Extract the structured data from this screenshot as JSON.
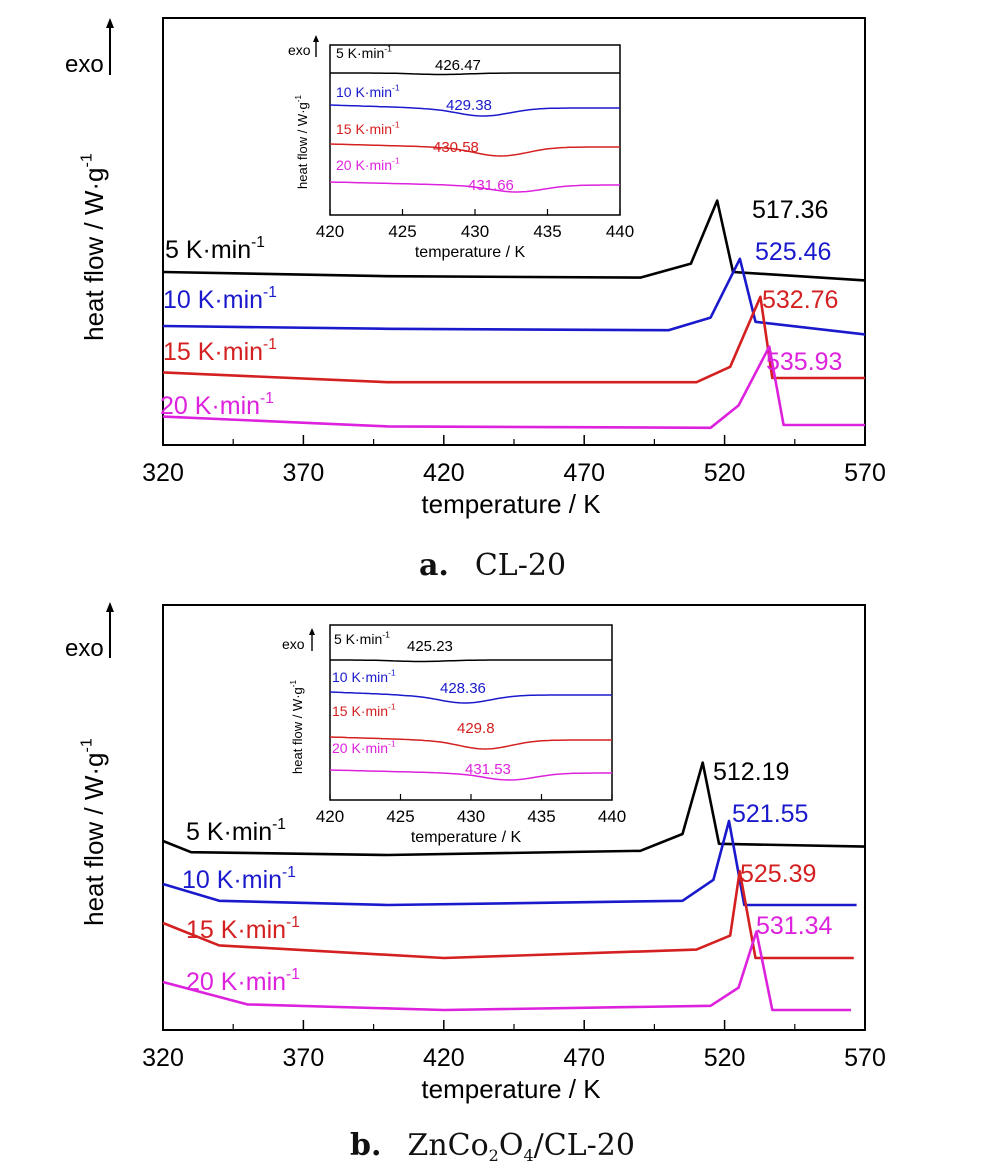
{
  "figures": [
    {
      "caption_letter": "a.",
      "caption_text": "CL-20",
      "main_peaks": [
        "517.36",
        "525.46",
        "532.76",
        "535.93"
      ],
      "inset_peaks": [
        "426.47",
        "429.38",
        "430.58",
        "431.66"
      ]
    },
    {
      "caption_letter": "b.",
      "caption_text_parts": [
        "ZnCo",
        "2",
        "O",
        "4",
        "/CL-20"
      ],
      "main_peaks": [
        "512.19",
        "521.55",
        "525.39",
        "531.34"
      ],
      "inset_peaks": [
        "425.23",
        "428.36",
        "429.8",
        "431.53"
      ]
    }
  ],
  "common": {
    "exo_label": "exo",
    "ylabel": "heat flow / W·g⁻¹",
    "xlabel": "temperature / K",
    "series_labels": [
      "5 K·min⁻¹",
      "10 K·min⁻¹",
      "15 K·min⁻¹",
      "20 K·min⁻¹"
    ],
    "series_colors": [
      "#000000",
      "#1a1acc",
      "#d42020",
      "#dd22dd"
    ]
  },
  "chart_data": [
    {
      "type": "line",
      "title": "CL-20",
      "xlabel": "temperature / K",
      "ylabel": "heat flow / W·g⁻¹",
      "xlim": [
        320,
        570
      ],
      "x_ticks": [
        320,
        370,
        420,
        470,
        520,
        570
      ],
      "legend": "none",
      "series": [
        {
          "name": "5 K·min⁻¹",
          "color": "#000000",
          "peak_T": 517.36,
          "points": [
            [
              320,
              0
            ],
            [
              400,
              -0.3
            ],
            [
              490,
              -0.4
            ],
            [
              508,
              0.6
            ],
            [
              517.36,
              5.1
            ],
            [
              523,
              0.0
            ],
            [
              570,
              -0.6
            ]
          ]
        },
        {
          "name": "10 K·min⁻¹",
          "color": "#1a1acc",
          "peak_T": 525.46,
          "points": [
            [
              320,
              0
            ],
            [
              400,
              -0.2
            ],
            [
              500,
              -0.3
            ],
            [
              515,
              0.6
            ],
            [
              525.46,
              4.8
            ],
            [
              531,
              0.3
            ],
            [
              570,
              -0.6
            ]
          ]
        },
        {
          "name": "15 K·min⁻¹",
          "color": "#d42020",
          "peak_T": 532.76,
          "points": [
            [
              320,
              0.4
            ],
            [
              400,
              -0.3
            ],
            [
              510,
              -0.3
            ],
            [
              522,
              0.8
            ],
            [
              532.76,
              5.8
            ],
            [
              537,
              0.0
            ],
            [
              570,
              0.0
            ]
          ]
        },
        {
          "name": "20 K·min⁻¹",
          "color": "#dd22dd",
          "peak_T": 535.93,
          "points": [
            [
              320,
              0.6
            ],
            [
              400,
              -0.1
            ],
            [
              515,
              -0.2
            ],
            [
              525,
              1.4
            ],
            [
              535.93,
              5.6
            ],
            [
              541,
              0.0
            ],
            [
              570,
              0.0
            ]
          ]
        }
      ],
      "inset": {
        "xlim": [
          420,
          440
        ],
        "x_ticks": [
          420,
          425,
          430,
          435,
          440
        ],
        "xlabel": "temperature / K",
        "ylabel": "heat flow / W·g⁻¹",
        "peaks": [
          426.47,
          429.38,
          430.58,
          431.66
        ]
      }
    },
    {
      "type": "line",
      "title": "ZnCo₂O₄/CL-20",
      "xlabel": "temperature / K",
      "ylabel": "heat flow / W·g⁻¹",
      "xlim": [
        320,
        570
      ],
      "x_ticks": [
        320,
        370,
        420,
        470,
        520,
        570
      ],
      "legend": "none",
      "series": [
        {
          "name": "5 K·min⁻¹",
          "color": "#000000",
          "peak_T": 512.19,
          "points": [
            [
              320,
              1.0
            ],
            [
              330,
              0.2
            ],
            [
              400,
              0.0
            ],
            [
              490,
              0.3
            ],
            [
              505,
              1.5
            ],
            [
              512.19,
              6.6
            ],
            [
              518,
              0.8
            ],
            [
              570,
              0.6
            ]
          ]
        },
        {
          "name": "10 K·min⁻¹",
          "color": "#1a1acc",
          "peak_T": 521.55,
          "points": [
            [
              320,
              1.5
            ],
            [
              340,
              0.3
            ],
            [
              400,
              0.0
            ],
            [
              505,
              0.3
            ],
            [
              516,
              1.8
            ],
            [
              521.55,
              6.0
            ],
            [
              527,
              0.0
            ],
            [
              567,
              0.0
            ]
          ]
        },
        {
          "name": "15 K·min⁻¹",
          "color": "#d42020",
          "peak_T": 525.39,
          "points": [
            [
              320,
              2.5
            ],
            [
              340,
              0.9
            ],
            [
              420,
              0.0
            ],
            [
              510,
              0.6
            ],
            [
              522,
              1.6
            ],
            [
              525.39,
              6.2
            ],
            [
              531,
              0.0
            ],
            [
              566,
              0.0
            ]
          ]
        },
        {
          "name": "20 K·min⁻¹",
          "color": "#dd22dd",
          "peak_T": 531.34,
          "points": [
            [
              320,
              2.0
            ],
            [
              350,
              0.4
            ],
            [
              420,
              0.0
            ],
            [
              515,
              0.3
            ],
            [
              525,
              1.6
            ],
            [
              531.34,
              5.6
            ],
            [
              537,
              0.0
            ],
            [
              565,
              0.0
            ]
          ]
        }
      ],
      "inset": {
        "xlim": [
          420,
          440
        ],
        "x_ticks": [
          420,
          425,
          430,
          435,
          440
        ],
        "xlabel": "temperature / K",
        "ylabel": "heat flow / W·g⁻¹",
        "peaks": [
          425.23,
          428.36,
          429.8,
          431.53
        ]
      }
    }
  ]
}
